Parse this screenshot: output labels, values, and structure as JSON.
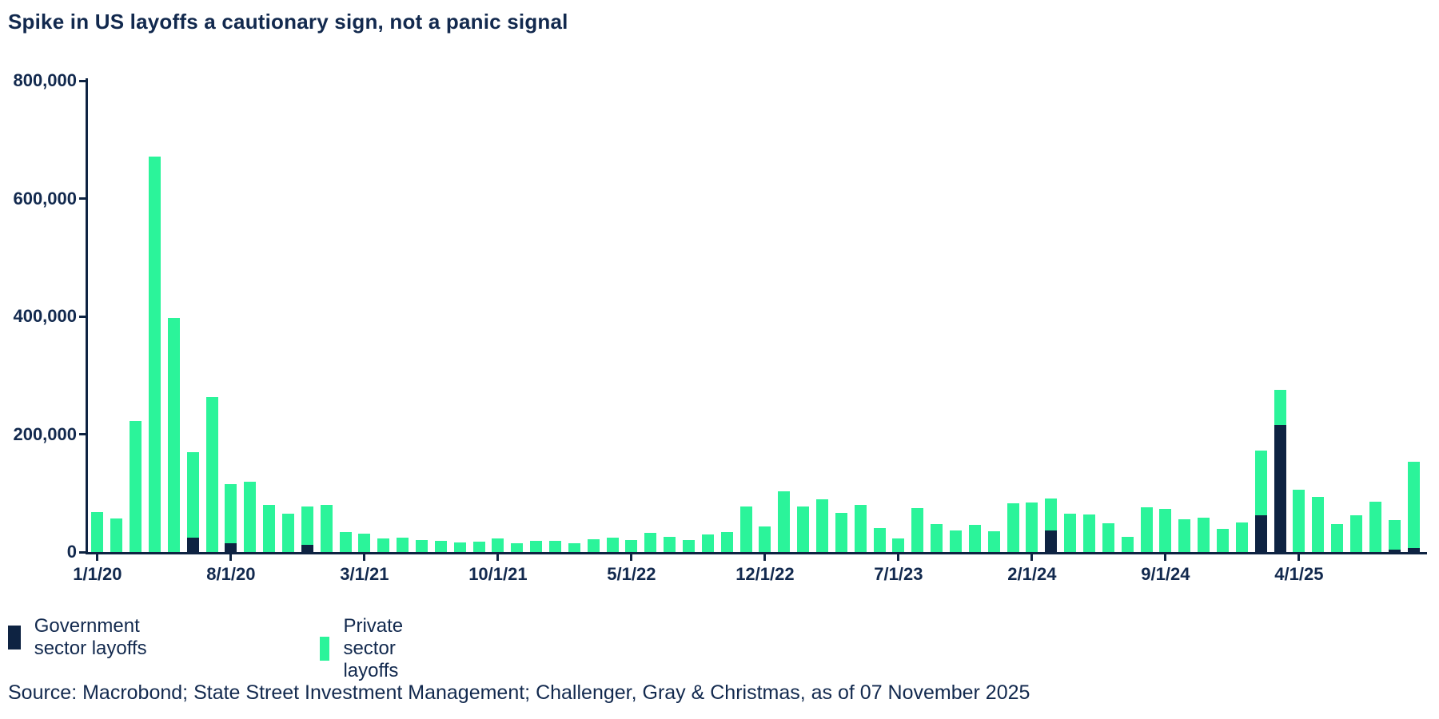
{
  "title": "Spike in US layoffs a cautionary sign, not a panic signal",
  "source_line": "Source: Macrobond; State Street Investment Management; Challenger, Gray & Christmas, as of 07 November 2025",
  "colors": {
    "government": "#0E2342",
    "private": "#2BF49A",
    "axis": "#0E2342",
    "text": "#12294E",
    "background": "#FFFFFF"
  },
  "legend": {
    "items": [
      {
        "key": "government",
        "label": "Government sector layoffs",
        "color": "#0E2342"
      },
      {
        "key": "private",
        "label": "Private sector layoffs",
        "color": "#2BF49A"
      }
    ]
  },
  "chart_data": {
    "type": "bar",
    "stacked": true,
    "title": "Spike in US layoffs a cautionary sign, not a panic signal",
    "xlabel": "",
    "ylabel": "",
    "ylim": [
      0,
      800000
    ],
    "grid": false,
    "legend_position": "bottom-left",
    "y_ticks": [
      {
        "value": 0,
        "label": "0"
      },
      {
        "value": 200000,
        "label": "200,000"
      },
      {
        "value": 400000,
        "label": "400,000"
      },
      {
        "value": 600000,
        "label": "600,000"
      },
      {
        "value": 800000,
        "label": "800,000"
      }
    ],
    "x_tick_labels": [
      "1/1/20",
      "8/1/20",
      "3/1/21",
      "10/1/21",
      "5/1/22",
      "12/1/22",
      "7/1/23",
      "2/1/24",
      "9/1/24",
      "4/1/25"
    ],
    "x_tick_month_indices": [
      0,
      7,
      14,
      21,
      28,
      35,
      42,
      49,
      56,
      63
    ],
    "months": [
      "1/1/20",
      "2/1/20",
      "3/1/20",
      "4/1/20",
      "5/1/20",
      "6/1/20",
      "7/1/20",
      "8/1/20",
      "9/1/20",
      "10/1/20",
      "11/1/20",
      "12/1/20",
      "1/1/21",
      "2/1/21",
      "3/1/21",
      "4/1/21",
      "5/1/21",
      "6/1/21",
      "7/1/21",
      "8/1/21",
      "9/1/21",
      "10/1/21",
      "11/1/21",
      "12/1/21",
      "1/1/22",
      "2/1/22",
      "3/1/22",
      "4/1/22",
      "5/1/22",
      "6/1/22",
      "7/1/22",
      "8/1/22",
      "9/1/22",
      "10/1/22",
      "11/1/22",
      "12/1/22",
      "1/1/23",
      "2/1/23",
      "3/1/23",
      "4/1/23",
      "5/1/23",
      "6/1/23",
      "7/1/23",
      "8/1/23",
      "9/1/23",
      "10/1/23",
      "11/1/23",
      "12/1/23",
      "1/1/24",
      "2/1/24",
      "3/1/24",
      "4/1/24",
      "5/1/24",
      "6/1/24",
      "7/1/24",
      "8/1/24",
      "9/1/24",
      "10/1/24",
      "11/1/24",
      "12/1/24",
      "1/1/25",
      "2/1/25",
      "3/1/25",
      "4/1/25",
      "5/1/25",
      "6/1/25",
      "7/1/25",
      "8/1/25",
      "9/1/25",
      "10/1/25"
    ],
    "series": [
      {
        "name": "Government sector layoffs",
        "color": "#0E2342",
        "values": [
          0,
          0,
          0,
          0,
          0,
          25000,
          0,
          15000,
          0,
          0,
          0,
          12000,
          0,
          0,
          0,
          0,
          0,
          0,
          0,
          0,
          0,
          0,
          0,
          0,
          0,
          0,
          0,
          0,
          0,
          0,
          0,
          0,
          0,
          0,
          0,
          0,
          0,
          0,
          0,
          0,
          0,
          0,
          0,
          0,
          0,
          0,
          0,
          0,
          0,
          0,
          36044,
          0,
          0,
          0,
          0,
          0,
          0,
          0,
          0,
          0,
          0,
          62242,
          216215,
          0,
          0,
          0,
          0,
          0,
          3500,
          6500
        ]
      },
      {
        "name": "Private sector layoffs",
        "color": "#2BF49A",
        "values": [
          67735,
          56660,
          222288,
          671129,
          397016,
          145219,
          262649,
          100762,
          118804,
          80666,
          64797,
          65030,
          79552,
          34531,
          30603,
          22913,
          24586,
          20476,
          18942,
          15723,
          17895,
          22822,
          14875,
          19052,
          19064,
          15245,
          21387,
          24286,
          20712,
          32517,
          25810,
          20485,
          29989,
          33843,
          76835,
          43651,
          102943,
          77770,
          89703,
          66995,
          80089,
          40709,
          23697,
          75151,
          47457,
          36836,
          45510,
          34817,
          82307,
          84638,
          54265,
          64789,
          63816,
          48786,
          25885,
          75891,
          72821,
          55597,
          57727,
          38792,
          49795,
          109775,
          59025,
          105441,
          93816,
          47999,
          62075,
          85979,
          50564,
          146574
        ]
      }
    ]
  }
}
